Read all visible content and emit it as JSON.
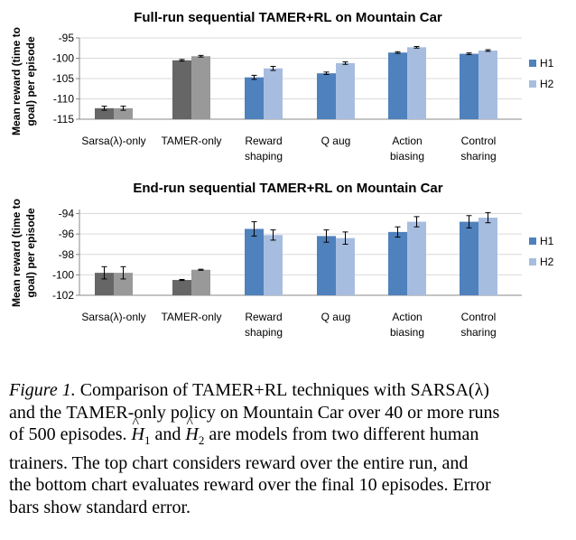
{
  "colors": {
    "h1_color": "#4f81bd",
    "h2_color": "#a7bde0",
    "baseline_h1": "#666666",
    "baseline_h2": "#999999",
    "grid": "#d9d9d9",
    "axis": "#888888"
  },
  "chart_data": [
    {
      "type": "bar",
      "title": "Full-run sequential TAMER+RL on Mountain Car",
      "ylabel": "Mean reward (time to goal) per episode",
      "ylim": [
        -115,
        -95
      ],
      "yticks": [
        -95,
        -100,
        -105,
        -110,
        -115
      ],
      "grid": true,
      "legend_placement": "right",
      "categories": [
        "Sarsa(λ)-only",
        "TAMER-only",
        "Reward shaping",
        "Q aug",
        "Action biasing",
        "Control sharing"
      ],
      "series": [
        {
          "name": "H1",
          "values": [
            -112.3,
            -100.5,
            -104.7,
            -103.7,
            -98.6,
            -98.9
          ],
          "errors": [
            0.5,
            0.2,
            0.5,
            0.3,
            0.2,
            0.2
          ]
        },
        {
          "name": "H2",
          "values": [
            -112.3,
            -99.5,
            -102.5,
            -101.2,
            -97.3,
            -98.1
          ],
          "errors": [
            0.5,
            0.2,
            0.5,
            0.3,
            0.2,
            0.2
          ]
        }
      ]
    },
    {
      "type": "bar",
      "title": "End-run sequential TAMER+RL on Mountain Car",
      "ylabel": "Mean reward (time to goal) per episode",
      "ylim": [
        -102,
        -93.6
      ],
      "yticks": [
        -94,
        -96,
        -98,
        -100,
        -102
      ],
      "grid": true,
      "legend_placement": "right",
      "categories": [
        "Sarsa(λ)-only",
        "TAMER-only",
        "Reward shaping",
        "Q aug",
        "Action biasing",
        "Control sharing"
      ],
      "series": [
        {
          "name": "H1",
          "values": [
            -99.8,
            -100.5,
            -95.5,
            -96.2,
            -95.8,
            -94.8
          ],
          "errors": [
            0.6,
            0.05,
            0.7,
            0.6,
            0.5,
            0.6
          ]
        },
        {
          "name": "H2",
          "values": [
            -99.8,
            -99.5,
            -96.1,
            -96.4,
            -94.8,
            -94.4
          ],
          "errors": [
            0.6,
            0.05,
            0.5,
            0.6,
            0.5,
            0.5
          ]
        }
      ]
    }
  ],
  "caption": {
    "label": "Figure 1.",
    "line1_a": "Comparison of",
    "line1_tamer": "TAMER+RL",
    "line1_b": "techniques with SARSA(λ)",
    "line2_a": "and the",
    "line2_tamer": "TAMER",
    "line2_b": "-only policy on Mountain Car over 40 or more runs",
    "line3_a": "of 500 episodes.",
    "h1_base": "H",
    "h1_sub": "1",
    "line3_and": "and",
    "h2_base": "H",
    "h2_sub": "2",
    "line3_b": "are models from two different human",
    "line4": "trainers. The top chart considers reward over the entire run, and",
    "line5": "the bottom chart evaluates reward over the final 10 episodes. Error",
    "line6": "bars show standard error."
  }
}
